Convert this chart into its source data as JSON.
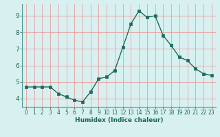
{
  "x": [
    0,
    1,
    2,
    3,
    4,
    5,
    6,
    7,
    8,
    9,
    10,
    11,
    12,
    13,
    14,
    15,
    16,
    17,
    18,
    19,
    20,
    21,
    22,
    23
  ],
  "y": [
    4.7,
    4.7,
    4.7,
    4.7,
    4.3,
    4.1,
    3.9,
    3.8,
    4.4,
    5.2,
    5.3,
    5.7,
    7.1,
    8.5,
    9.3,
    8.9,
    9.0,
    7.8,
    7.2,
    6.5,
    6.3,
    5.8,
    5.5,
    5.4
  ],
  "xlabel": "Humidex (Indice chaleur)",
  "ylim": [
    3.5,
    9.7
  ],
  "xlim": [
    -0.5,
    23.5
  ],
  "line_color": "#1a6b5a",
  "marker_color": "#1a6b5a",
  "bg_color": "#d8f0f0",
  "grid_color": "#e8a0a0",
  "tick_color": "#1a6b5a",
  "label_color": "#1a6b5a",
  "yticks": [
    4,
    5,
    6,
    7,
    8,
    9
  ],
  "xticks": [
    0,
    1,
    2,
    3,
    4,
    5,
    6,
    7,
    8,
    9,
    10,
    11,
    12,
    13,
    14,
    15,
    16,
    17,
    18,
    19,
    20,
    21,
    22,
    23
  ]
}
